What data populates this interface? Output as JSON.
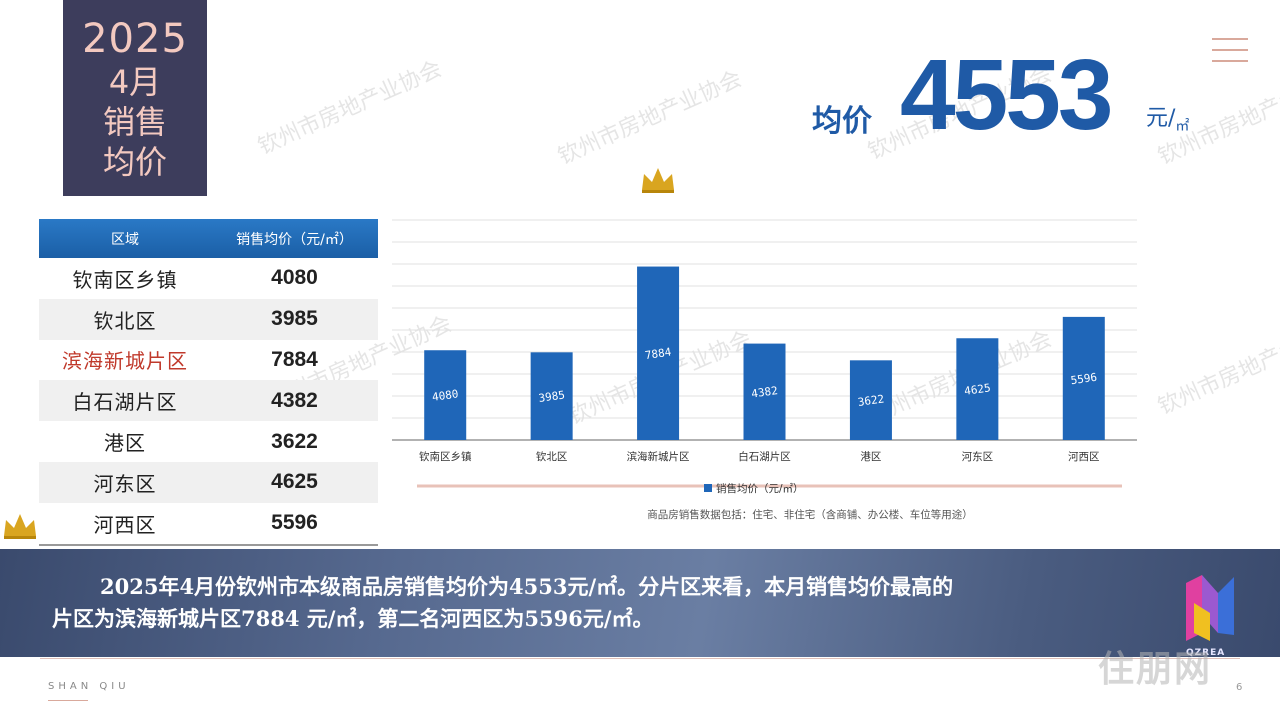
{
  "title": {
    "year": "2025",
    "month": "4月",
    "line1": "销售",
    "line2": "均价"
  },
  "headline": {
    "label": "均价",
    "value": "4553",
    "unit": "元/",
    "unit_sub": "㎡"
  },
  "table": {
    "headers": [
      "区域",
      "销售均价（元/㎡）"
    ],
    "rows": [
      {
        "area": "钦南区乡镇",
        "price": "4080"
      },
      {
        "area": "钦北区",
        "price": "3985"
      },
      {
        "area": "滨海新城片区",
        "price": "7884"
      },
      {
        "area": "白石湖片区",
        "price": "4382"
      },
      {
        "area": "港区",
        "price": "3622"
      },
      {
        "area": "河东区",
        "price": "4625"
      },
      {
        "area": "河西区",
        "price": "5596"
      }
    ]
  },
  "chart_data": {
    "type": "bar",
    "categories": [
      "钦南区乡镇",
      "钦北区",
      "滨海新城片区",
      "白石湖片区",
      "港区",
      "河东区",
      "河西区"
    ],
    "series": [
      {
        "name": "销售均价（元/㎡）",
        "values": [
          4080,
          3985,
          7884,
          4382,
          3622,
          4625,
          5596
        ]
      }
    ],
    "ylim": [
      0,
      10000
    ],
    "grid": true,
    "legend": "bottom",
    "note": "商品房销售数据包括：住宅、非住宅（含商铺、办公楼、车位等用途）",
    "bar_color": "#1f66b8"
  },
  "summary": {
    "line1": "2025年4月份钦州市本级商品房销售均价为4553元/㎡。分片区来看，本月销售均价最高的",
    "line2": "片区为滨海新城片区7884 元/㎡，第二名河西区为5596元/㎡。"
  },
  "logo_text": "QZREA",
  "footer": {
    "brand": "SHAN QIU",
    "page": "6"
  },
  "watermark_text": "钦州市房地产业协会",
  "site_logo": "住朋网",
  "colors": {
    "accent": "#1f5aa6",
    "title_bg": "#3d3d5c",
    "title_text": "#f3c9c0",
    "highlight": "#c0392b"
  },
  "icons": {
    "menu": "menu-icon",
    "crown": "crown-icon"
  }
}
